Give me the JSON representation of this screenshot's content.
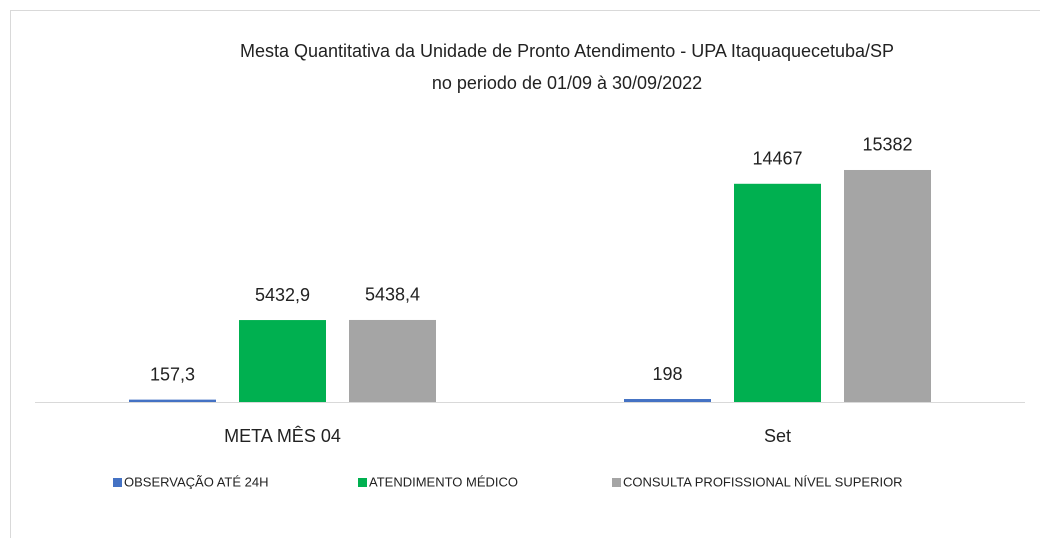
{
  "chart_data": {
    "type": "bar",
    "title": "Mesta Quantitativa da Unidade de Pronto Atendimento - UPA Itaquaquecetuba/SP",
    "subtitle": "no periodo de 01/09 à 30/09/2022",
    "categories": [
      "META MÊS 04",
      "Set"
    ],
    "series": [
      {
        "name": "OBSERVAÇÃO ATÉ 24H",
        "color": "#4472c4",
        "values": [
          157.3,
          198
        ],
        "value_labels": [
          "157,3",
          "198"
        ]
      },
      {
        "name": "ATENDIMENTO MÉDICO",
        "color": "#00b050",
        "values": [
          5432.9,
          14467
        ],
        "value_labels": [
          "5432,9",
          "14467"
        ]
      },
      {
        "name": "CONSULTA PROFISSIONAL NÍVEL SUPERIOR",
        "color": "#a5a5a5",
        "values": [
          5438.4,
          15382
        ],
        "value_labels": [
          "5438,4",
          "15382"
        ]
      }
    ],
    "ylim": [
      0,
      18000
    ],
    "legend": "bottom"
  }
}
